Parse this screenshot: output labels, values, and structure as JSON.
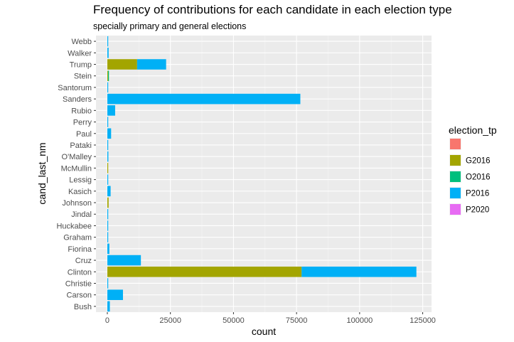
{
  "chart_data": {
    "type": "bar",
    "orientation": "horizontal",
    "stacked": true,
    "title": "Frequency of contributions for each candidate in each election type",
    "subtitle": "specially primary and general elections",
    "xlabel": "count",
    "ylabel": "cand_last_nm",
    "xlim": [
      -4500,
      128500
    ],
    "x_ticks": [
      0,
      25000,
      50000,
      75000,
      100000,
      125000
    ],
    "x_tick_labels": [
      "0",
      "25000",
      "50000",
      "75000",
      "100000",
      "125000"
    ],
    "grid": true,
    "legend_position": "right",
    "legend_title": "election_tp",
    "categories": [
      "Bush",
      "Carson",
      "Christie",
      "Clinton",
      "Cruz",
      "Fiorina",
      "Graham",
      "Huckabee",
      "Jindal",
      "Johnson",
      "Kasich",
      "Lessig",
      "McMullin",
      "O'Malley",
      "Pataki",
      "Paul",
      "Perry",
      "Rubio",
      "Sanders",
      "Santorum",
      "Stein",
      "Trump",
      "Walker",
      "Webb"
    ],
    "series": [
      {
        "name": "",
        "color": "#F8766D",
        "values": [
          0,
          0,
          0,
          0,
          0,
          0,
          0,
          0,
          0,
          0,
          0,
          0,
          0,
          0,
          0,
          0,
          0,
          0,
          0,
          0,
          0,
          0,
          0,
          0
        ]
      },
      {
        "name": "G2016",
        "color": "#A3A500",
        "values": [
          0,
          0,
          0,
          77000,
          0,
          0,
          0,
          0,
          0,
          500,
          0,
          0,
          300,
          0,
          0,
          0,
          0,
          0,
          0,
          0,
          300,
          11800,
          0,
          0
        ]
      },
      {
        "name": "O2016",
        "color": "#00BF7D",
        "values": [
          0,
          0,
          0,
          0,
          0,
          0,
          0,
          0,
          0,
          0,
          0,
          0,
          0,
          0,
          0,
          0,
          0,
          0,
          0,
          0,
          200,
          0,
          0,
          0
        ]
      },
      {
        "name": "P2016",
        "color": "#00B0F6",
        "values": [
          1000,
          6200,
          300,
          45500,
          13300,
          800,
          200,
          300,
          50,
          0,
          1300,
          200,
          0,
          400,
          50,
          1500,
          50,
          3100,
          76500,
          50,
          0,
          11500,
          500,
          100
        ]
      },
      {
        "name": "P2020",
        "color": "#E76BF3",
        "values": [
          0,
          0,
          0,
          0,
          0,
          0,
          0,
          0,
          0,
          0,
          0,
          0,
          0,
          0,
          0,
          0,
          0,
          0,
          0,
          0,
          0,
          0,
          0,
          0
        ]
      }
    ]
  }
}
